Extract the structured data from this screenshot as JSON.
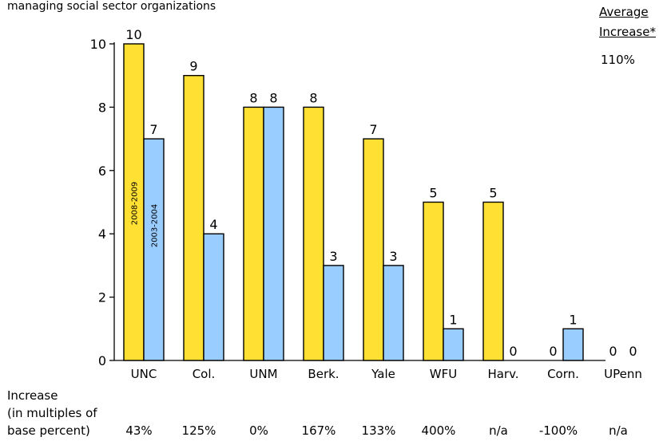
{
  "subtitle": "managing social sector organizations",
  "average_header": [
    "Average",
    "Increase*"
  ],
  "average_value": "110%",
  "increase_label": [
    "Increase",
    "(in multiples of",
    "base percent)"
  ],
  "chart_data": {
    "type": "bar",
    "categories": [
      "UNC",
      "Col.",
      "UNM",
      "Berk.",
      "Yale",
      "WFU",
      "Harv.",
      "Corn.",
      "UPenn"
    ],
    "series": [
      {
        "name": "2008-2009",
        "color": "#ffe033",
        "values": [
          10,
          9,
          8,
          8,
          7,
          5,
          5,
          0,
          0
        ]
      },
      {
        "name": "2003-2004",
        "color": "#99ccff",
        "values": [
          7,
          4,
          8,
          3,
          3,
          1,
          0,
          1,
          0
        ]
      }
    ],
    "ylim": [
      0,
      10
    ],
    "yticks": [
      0,
      2,
      4,
      6,
      8,
      10
    ],
    "grid": false,
    "increase": [
      "43%",
      "125%",
      "0%",
      "167%",
      "133%",
      "400%",
      "n/a",
      "-100%",
      "n/a"
    ]
  }
}
